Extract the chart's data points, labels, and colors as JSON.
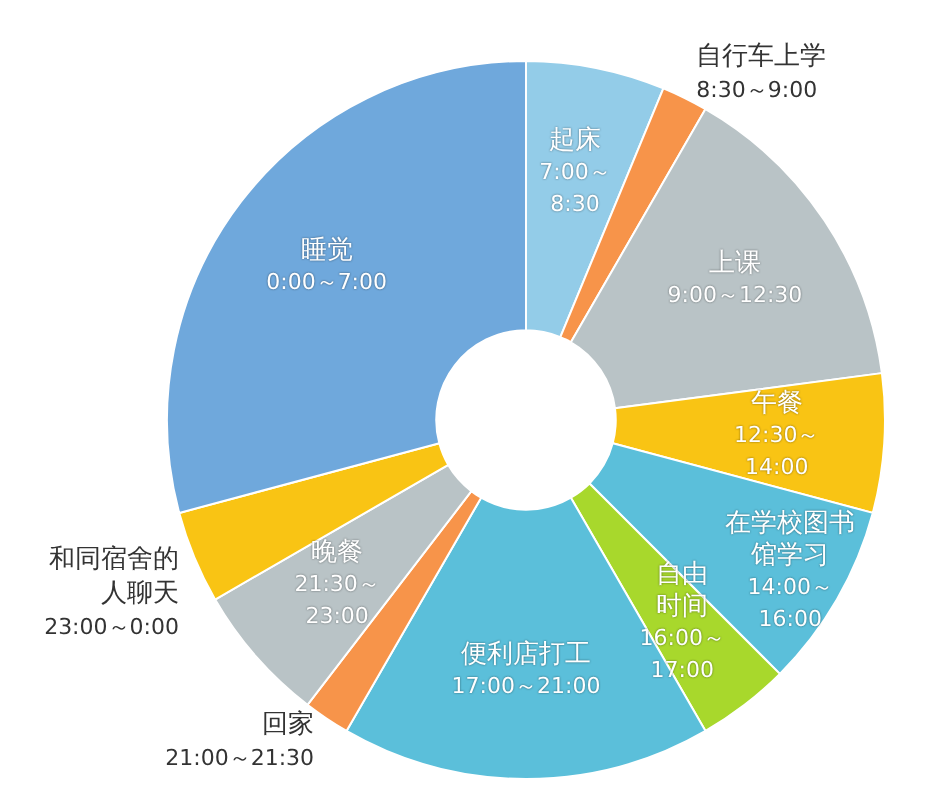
{
  "chart_data": {
    "type": "donut",
    "categories": [
      "起床",
      "自行车上学",
      "上课",
      "午餐",
      "在学校图书馆学习",
      "自由时间",
      "便利店打工",
      "回家",
      "晚餐",
      "和同宿舍的人聊天",
      "睡觉"
    ],
    "values": [
      6.25,
      2.083,
      14.583,
      6.25,
      8.333,
      4.167,
      16.667,
      2.083,
      6.25,
      4.167,
      29.167
    ],
    "colors": [
      "#93cce8",
      "#f7944a",
      "#b9c3c6",
      "#f9c414",
      "#5bbfda",
      "#a8d82c",
      "#5bbfda",
      "#f7944a",
      "#b9c3c6",
      "#f9c414",
      "#6fa8dc"
    ],
    "annotations": [
      "7:00～8:30",
      "8:30～9:00",
      "9:00～12:30",
      "12:30～14:00",
      "14:00～16:00",
      "16:00～17:00",
      "17:00～21:00",
      "21:00～21:30",
      "21:30～23:00",
      "23:00～0:00",
      "0:00～7:00"
    ],
    "legend": false
  }
}
